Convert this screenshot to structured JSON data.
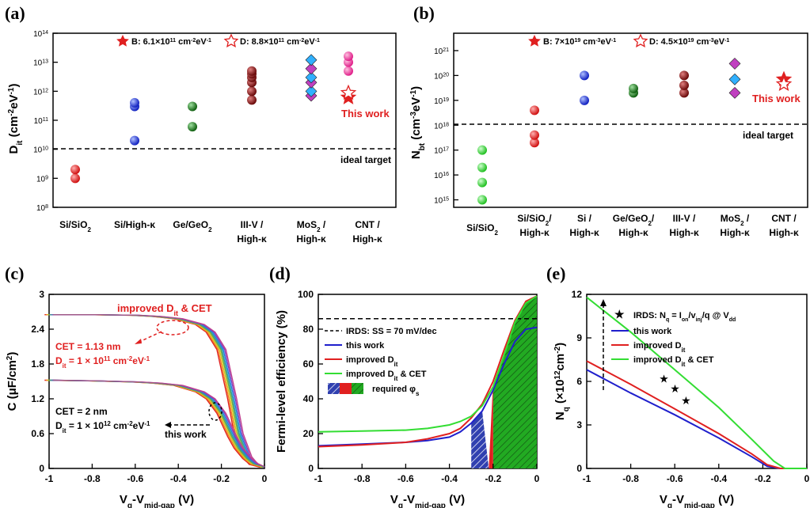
{
  "chart_data": [
    {
      "panel": "(a)",
      "type": "scatter",
      "yscale": "log",
      "ylim": [
        100000000.0,
        100000000000000.0
      ],
      "ylabel": "Dit (cm-2eV-1)",
      "yticks": [
        "10^8",
        "10^9",
        "10^10",
        "10^11",
        "10^12",
        "10^13",
        "10^14"
      ],
      "categories": [
        "Si/SiO2",
        "Si/High-κ",
        "Ge/GeO2",
        "III-V / High-κ",
        "MoS2 / High-κ",
        "CNT / High-κ"
      ],
      "reference_line": {
        "value": 10000000000.0,
        "label": "ideal target"
      },
      "legend": [
        "B: 6.1×10^11 cm^-2eV^-1",
        "D: 8.8×10^11 cm^-2eV^-1"
      ],
      "annotation": "This work",
      "series": [
        {
          "category": "Si/SiO2",
          "color": "#e02020",
          "values": [
            1000000000.0,
            2000000000.0
          ]
        },
        {
          "category": "Si/High-κ",
          "color": "#2040e0",
          "values": [
            20000000000.0,
            300000000000.0,
            400000000000.0
          ]
        },
        {
          "category": "Ge/GeO2",
          "color": "#208020",
          "values": [
            60000000000.0,
            300000000000.0
          ]
        },
        {
          "category": "III-V / High-κ",
          "color": "#8b1a1a",
          "values": [
            500000000000.0,
            1000000000000.0,
            2000000000000.0,
            3000000000000.0,
            4000000000000.0,
            5000000000000.0
          ]
        },
        {
          "category": "MoS2 / High-κ",
          "color": "#c040c0",
          "values": [
            700000000000.0,
            1000000000000.0,
            2000000000000.0,
            3000000000000.0,
            6000000000000.0,
            12000000000000.0
          ]
        },
        {
          "category": "CNT / High-κ",
          "color": "#e040a0",
          "values": [
            5000000000000.0,
            10000000000000.0,
            16000000000000.0
          ]
        },
        {
          "category": "CNT / High-κ",
          "name": "This work",
          "color": "#e02020",
          "values": [
            610000000000.0,
            880000000000.0
          ]
        }
      ]
    },
    {
      "panel": "(b)",
      "type": "scatter",
      "yscale": "log",
      "ylim": [
        500000000000000.0,
        5e+21
      ],
      "ylabel": "Nbt (cm-3eV-1)",
      "yticks": [
        "10^15",
        "10^16",
        "10^17",
        "10^18",
        "10^19",
        "10^20",
        "10^21"
      ],
      "categories": [
        "Si/SiO2",
        "Si/SiO2/ High-κ",
        "Si / High-κ",
        "Ge/GeO2/ High-κ",
        "III-V / High-κ",
        "MoS2 / High-κ",
        "CNT / High-κ"
      ],
      "reference_line": {
        "value": 1e+18,
        "label": "ideal target"
      },
      "legend": [
        "B: 7×10^19 cm^-3eV^-1",
        "D: 4.5×10^19 cm^-3eV^-1"
      ],
      "annotation": "This work",
      "series": [
        {
          "category": "Si/SiO2",
          "color": "#30d030",
          "values": [
            1000000000000000.0,
            5000000000000000.0,
            2e+16,
            1e+17
          ]
        },
        {
          "category": "Si/SiO2/ High-κ",
          "color": "#e02020",
          "values": [
            2e+17,
            4e+17,
            4e+18
          ]
        },
        {
          "category": "Si / High-κ",
          "color": "#2040e0",
          "values": [
            1e+19,
            1e+20
          ]
        },
        {
          "category": "Ge/GeO2/ High-κ",
          "color": "#208020",
          "values": [
            2e+19,
            3e+19
          ]
        },
        {
          "category": "III-V / High-κ",
          "color": "#8b1a1a",
          "values": [
            2e+19,
            4e+19,
            1e+20
          ]
        },
        {
          "category": "MoS2 / High-κ",
          "color": "#c040c0",
          "values": [
            2e+19,
            7e+19,
            3e+20
          ]
        },
        {
          "category": "CNT / High-κ",
          "name": "This work",
          "color": "#e02020",
          "values": [
            7e+19,
            4.5e+19
          ]
        }
      ]
    },
    {
      "panel": "(c)",
      "type": "line",
      "xlabel": "Vg-Vmid-gap (V)",
      "ylabel": "C (μF/cm2)",
      "xlim": [
        -1,
        0
      ],
      "ylim": [
        0,
        3
      ],
      "xticks": [
        "-1",
        "-0.8",
        "-0.6",
        "-0.4",
        "-0.2",
        "0"
      ],
      "yticks": [
        "0",
        "0.6",
        "1.2",
        "1.8",
        "2.4",
        "3"
      ],
      "annotations": [
        "improved Dit & CET",
        "CET = 1.13 nm",
        "Dit = 1 × 10^11 cm-2eV-1",
        "CET = 2 nm",
        "Dit = 1 × 10^12 cm-2eV-1",
        "this work"
      ],
      "series": [
        {
          "name": "improved",
          "x": [
            -1,
            -0.8,
            -0.6,
            -0.5,
            -0.4,
            -0.3,
            -0.25,
            -0.2,
            -0.15,
            -0.12,
            -0.08,
            -0.05,
            0
          ],
          "y": [
            2.65,
            2.65,
            2.64,
            2.62,
            2.58,
            2.48,
            2.35,
            2.05,
            1.2,
            0.6,
            0.2,
            0.07,
            0.02
          ]
        },
        {
          "name": "this work",
          "x": [
            -1,
            -0.8,
            -0.6,
            -0.5,
            -0.4,
            -0.3,
            -0.25,
            -0.2,
            -0.15,
            -0.12,
            -0.08,
            -0.05,
            0
          ],
          "y": [
            1.52,
            1.51,
            1.49,
            1.47,
            1.43,
            1.32,
            1.2,
            0.95,
            0.55,
            0.35,
            0.17,
            0.08,
            0.03
          ]
        }
      ]
    },
    {
      "panel": "(d)",
      "type": "line",
      "xlabel": "Vg-Vmid-gap (V)",
      "ylabel": "Fermi-level efficiency (%)",
      "xlim": [
        -1,
        0
      ],
      "ylim": [
        0,
        100
      ],
      "xticks": [
        "-1",
        "-0.8",
        "-0.6",
        "-0.4",
        "-0.2",
        "0"
      ],
      "yticks": [
        "0",
        "20",
        "40",
        "60",
        "80",
        "100"
      ],
      "reference_line": {
        "value": 86,
        "label": "IRDS: SS = 70 mV/dec"
      },
      "legend": [
        "this work",
        "improved Dit",
        "improved Dit & CET",
        "required φs"
      ],
      "series": [
        {
          "name": "this work",
          "color": "#1f1fcc",
          "x": [
            -1,
            -0.8,
            -0.6,
            -0.5,
            -0.4,
            -0.35,
            -0.3,
            -0.25,
            -0.2,
            -0.15,
            -0.1,
            -0.05,
            0
          ],
          "y": [
            13,
            14,
            15,
            16,
            18,
            21,
            26,
            33,
            45,
            60,
            73,
            80,
            81
          ]
        },
        {
          "name": "improved Dit",
          "color": "#e02020",
          "x": [
            -1,
            -0.8,
            -0.6,
            -0.5,
            -0.4,
            -0.35,
            -0.3,
            -0.25,
            -0.2,
            -0.15,
            -0.1,
            -0.05,
            0
          ],
          "y": [
            12.5,
            13.5,
            15,
            17,
            20,
            23,
            29,
            37,
            50,
            68,
            85,
            96,
            99
          ]
        },
        {
          "name": "improved Dit & CET",
          "color": "#33dd33",
          "x": [
            -1,
            -0.8,
            -0.6,
            -0.5,
            -0.4,
            -0.35,
            -0.3,
            -0.25,
            -0.2,
            -0.15,
            -0.1,
            -0.05,
            0
          ],
          "y": [
            21,
            21.5,
            22,
            23,
            25,
            27,
            30,
            36,
            47,
            65,
            84,
            95,
            99
          ]
        }
      ]
    },
    {
      "panel": "(e)",
      "type": "line",
      "xlabel": "Vg-Vmid-gap (V)",
      "ylabel": "Nq (×10^12cm-2)",
      "xlim": [
        -1,
        0
      ],
      "ylim": [
        0,
        12
      ],
      "xticks": [
        "-1",
        "-0.8",
        "-0.6",
        "-0.4",
        "-0.2",
        "0"
      ],
      "yticks": [
        "0",
        "3",
        "6",
        "9",
        "12"
      ],
      "legend": [
        "IRDS: Nq = Ion/vinj/q @ Vdd",
        "this work",
        "improved Dit",
        "improved Dit & CET"
      ],
      "markers": {
        "name": "IRDS",
        "x": [
          -0.65,
          -0.6,
          -0.55
        ],
        "y": [
          6.2,
          5.5,
          4.7
        ]
      },
      "series": [
        {
          "name": "this work",
          "color": "#1f1fcc",
          "x": [
            -1,
            -0.8,
            -0.6,
            -0.4,
            -0.25,
            -0.18,
            -0.12,
            0
          ],
          "y": [
            6.8,
            5.2,
            3.7,
            2.1,
            0.8,
            0.15,
            0,
            0
          ]
        },
        {
          "name": "improved Dit",
          "color": "#e02020",
          "x": [
            -1,
            -0.8,
            -0.6,
            -0.4,
            -0.25,
            -0.18,
            -0.12,
            0
          ],
          "y": [
            7.4,
            5.8,
            4.1,
            2.4,
            1.0,
            0.25,
            0,
            0
          ]
        },
        {
          "name": "improved Dit & CET",
          "color": "#33dd33",
          "x": [
            -1,
            -0.8,
            -0.6,
            -0.4,
            -0.25,
            -0.15,
            -0.1,
            0
          ],
          "y": [
            11.8,
            9.4,
            6.8,
            4.2,
            2.0,
            0.5,
            0,
            0
          ]
        }
      ]
    }
  ],
  "labels": {
    "a": "(a)",
    "b": "(b)",
    "c": "(c)",
    "d": "(d)",
    "e": "(e)",
    "legendA1": "B: 6.1×10",
    "legendA1e": "11",
    "legendA1u": " cm",
    "legendA1u2": "-2",
    "legendA1u3": "eV",
    "legendA1u4": "-1",
    "legendA2": "D: 8.8×10",
    "legendA2e": "11",
    "legendB1": "B: 7×10",
    "legendB1e": "19",
    "legendB2": "D: 4.5×10",
    "legendB2e": "19",
    "cm": " cm",
    "m2": "-2",
    "m3": "-3",
    "ev": "eV",
    "m1": "-1",
    "thiswork": "This work",
    "ideal": "ideal target",
    "dit": "D",
    "it": "it",
    "cmUnit": " (cm",
    "ev2": "eV",
    "close": ")",
    "nbt": "N",
    "bt": "bt",
    "cLabel": "C (μF/cm",
    "cLabel2": "2",
    "cLabel3": ")",
    "xLabelV": "V",
    "xLabelG": "g",
    "xLabelMid": "-V",
    "xLabelSub": "mid-gap",
    "xLabelUnit": " (V)",
    "impr": "improved  D",
    "impr2": " & CET",
    "cet1": "CET = 1.13 nm",
    "dit1": "D",
    "dit1b": " = 1 × 10",
    "dit1e": "11",
    "dit1u": " cm",
    "dit1u2": "-2",
    "dit1u3": "eV",
    "dit1u4": "-1",
    "cet2": "CET = 2 nm",
    "dit2e": "12",
    "thisworkSmall": "this work",
    "fle": "Fermi-level efficiency (%)",
    "irds": "IRDS: SS = 70 mV/dec",
    "lg1": "this work",
    "lg2": "improved D",
    "lg3": "improved D",
    "lg3b": " & CET",
    "lg4": "required φ",
    "lg4s": "s",
    "nq": "N",
    "nqs": "q",
    "nqu": " (×10",
    "nque": "12",
    "nquc": "cm",
    "nquce": "-2",
    "nqucl": ")",
    "irdsE": "IRDS: N",
    "irdsE2": " = I",
    "irdsE3": "on",
    "irdsE4": "/v",
    "irdsE5": "inj",
    "irdsE6": "/q @ V",
    "irdsE7": "dd",
    "cat": {
      "a1": "Si/SiO",
      "a1s": "2",
      "a2": "Si/High-κ",
      "a3": "Ge/GeO",
      "a3s": "2",
      "a4": "III-V /",
      "a4b": "High-κ",
      "a5": "MoS",
      "a5s": "2",
      "a5c": " /",
      "a5b": "High-κ",
      "a6": "CNT /",
      "a6b": "High-κ",
      "b1": "Si/SiO",
      "b1s": "2",
      "b2": "Si/SiO",
      "b2s": "2",
      "b2c": "/",
      "b2b": "High-κ",
      "b3": "Si /",
      "b3b": "High-κ",
      "b4": "Ge/GeO",
      "b4s": "2",
      "b4c": "/",
      "b4b": "High-κ",
      "b5": "III-V /",
      "b5b": "High-κ",
      "b6": "MoS",
      "b6s": "2",
      "b6c": " /",
      "b6b": "High-κ",
      "b7": "CNT /",
      "b7b": "High-κ"
    }
  }
}
